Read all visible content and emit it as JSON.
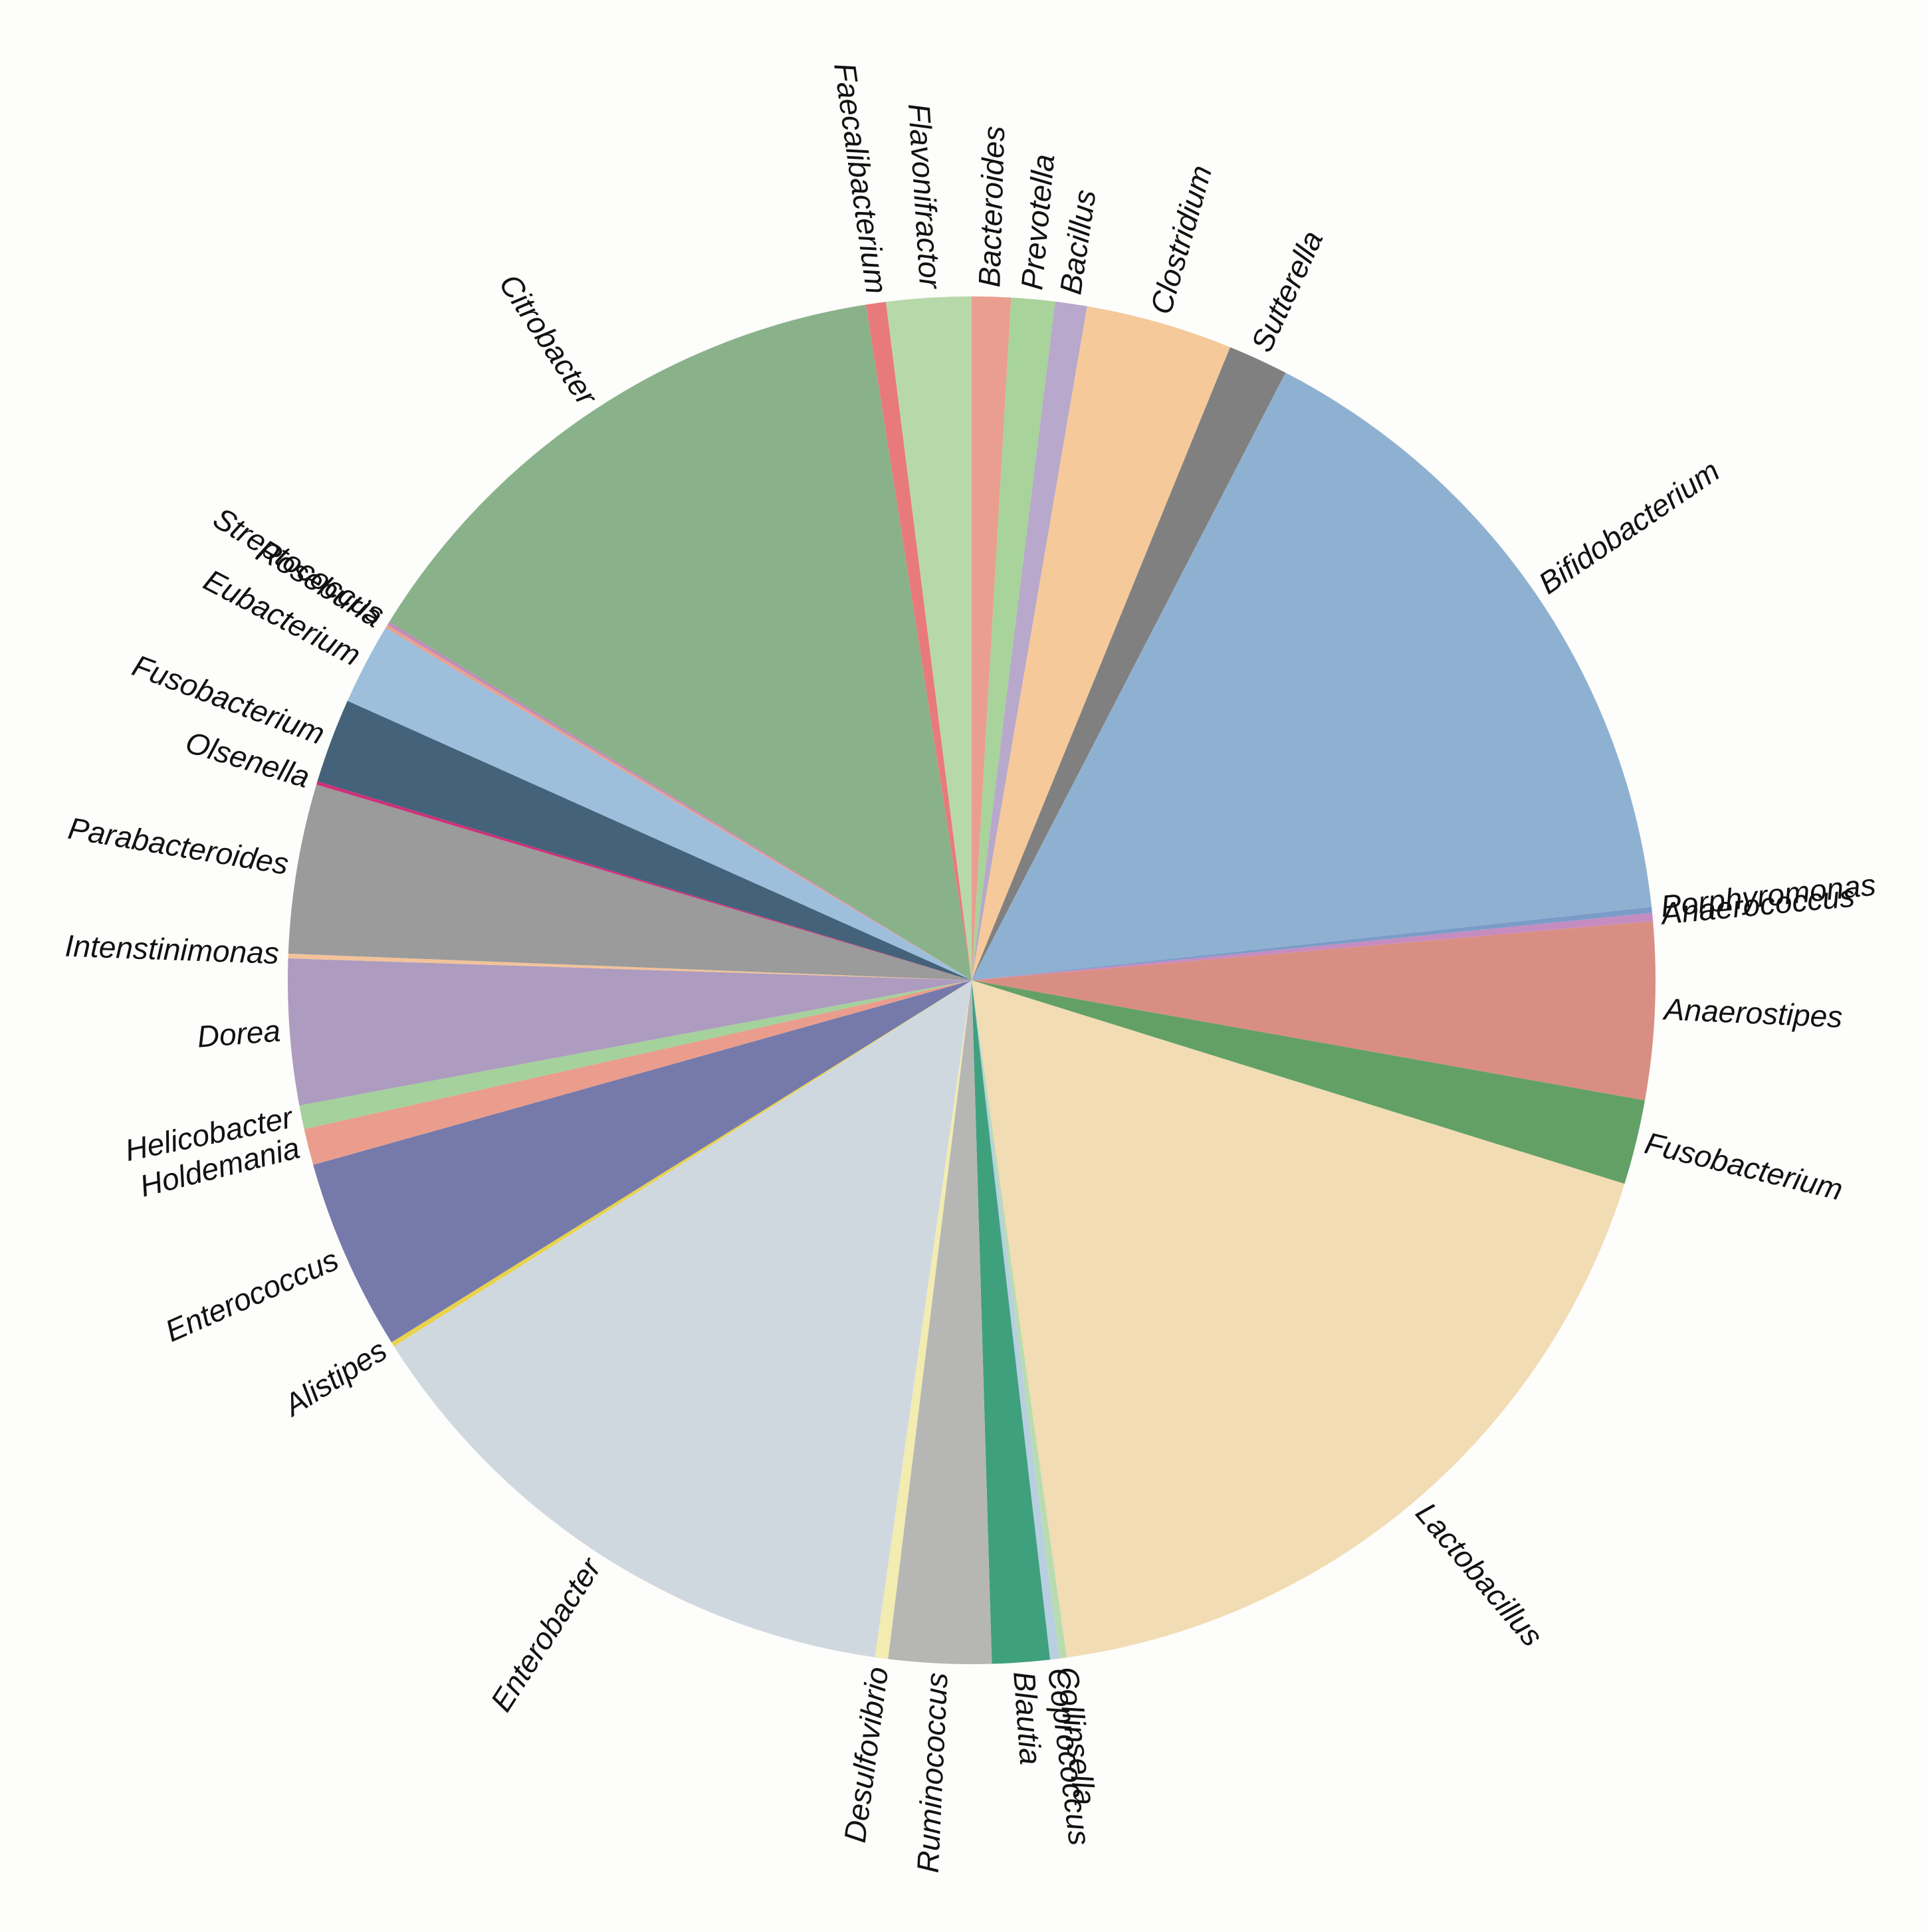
{
  "chart_data": {
    "type": "pie",
    "categories": [
      "Bacteroides",
      "Prevotella",
      "Bacillus",
      "Clostridium",
      "Sutterella",
      "Bifidobacterium",
      "Porphyromonas",
      "Anaerococcus",
      "Anaerostipes",
      "Fusobacterium",
      "Lactobacillus",
      "Collinsella",
      "Coprococcus",
      "Blautia",
      "Ruminococcus",
      "Desulfovibrio",
      "Enterobacter",
      "Alistipes",
      "Enterococcus",
      "Holdemania",
      "Helicobacter",
      "Dorea",
      "Intenstinimonas",
      "Parabacteroides",
      "Olsenella",
      "Fusobacterium",
      "Eubacterium",
      "Roseburia",
      "Streptococcus",
      "Citrobacter",
      "Faecalibacterium",
      "Flavonifractor"
    ],
    "values": [
      0.92,
      1.03,
      0.75,
      3.47,
      1.42,
      15.7,
      0.14,
      0.19,
      4.19,
      2.0,
      17.97,
      0.17,
      0.22,
      1.36,
      2.42,
      0.31,
      13.75,
      0.11,
      4.53,
      0.86,
      0.56,
      3.44,
      0.11,
      4.0,
      0.08,
      2.0,
      1.92,
      0.08,
      0.08,
      13.75,
      0.47,
      2.0
    ],
    "colors": [
      "#e99e90",
      "#a8d39b",
      "#b8a8cb",
      "#f5c99a",
      "#808080",
      "#8fb1d1",
      "#7b9cc8",
      "#c58cc0",
      "#d98e84",
      "#63a066",
      "#f1dcb4",
      "#b8dcb0",
      "#b7cfe0",
      "#3fa07e",
      "#b6b7b5",
      "#f2ecb0",
      "#d0d8df",
      "#e8d34a",
      "#767aab",
      "#ea9d8c",
      "#a5d19c",
      "#ad9cbf",
      "#f3c29a",
      "#9a9b9a",
      "#d02f7a",
      "#44637a",
      "#9dbfdc",
      "#e8a090",
      "#c08cb8",
      "#8ab28a",
      "#e87a7c",
      "#b7d9aa"
    ]
  }
}
